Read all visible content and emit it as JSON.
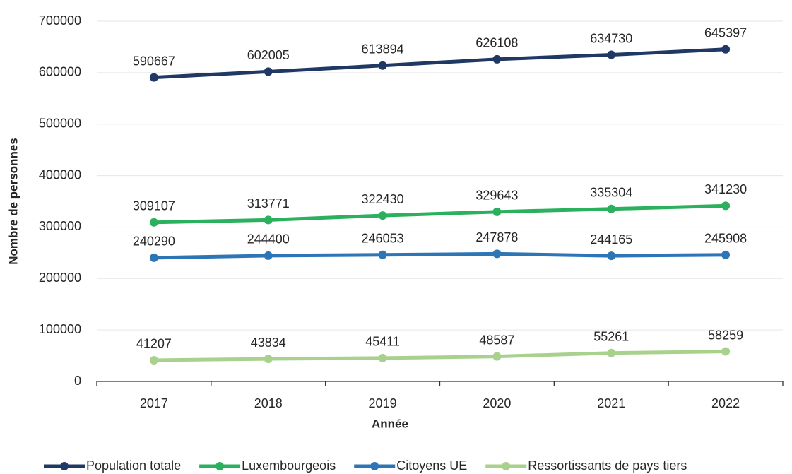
{
  "chart_data": {
    "type": "line",
    "x_label": "Année",
    "y_label": "Nombre de personnes",
    "categories": [
      "2017",
      "2018",
      "2019",
      "2020",
      "2021",
      "2022"
    ],
    "series": [
      {
        "name": "Population totale",
        "color": "#203864",
        "values": [
          590667,
          602005,
          613894,
          626108,
          634730,
          645397
        ]
      },
      {
        "name": "Luxembourgeois",
        "color": "#2bb05e",
        "values": [
          309107,
          313771,
          322430,
          329643,
          335304,
          341230
        ]
      },
      {
        "name": "Citoyens UE",
        "color": "#2e75b6",
        "values": [
          240290,
          244400,
          246053,
          247878,
          244165,
          245908
        ]
      },
      {
        "name": "Ressortissants de pays tiers",
        "color": "#a9d18e",
        "values": [
          41207,
          43834,
          45411,
          48587,
          55261,
          58259
        ]
      }
    ],
    "ylim": [
      0,
      700000
    ],
    "yticks": [
      0,
      100000,
      200000,
      300000,
      400000,
      500000,
      600000,
      700000
    ],
    "grid": true,
    "legend": "bottom"
  }
}
